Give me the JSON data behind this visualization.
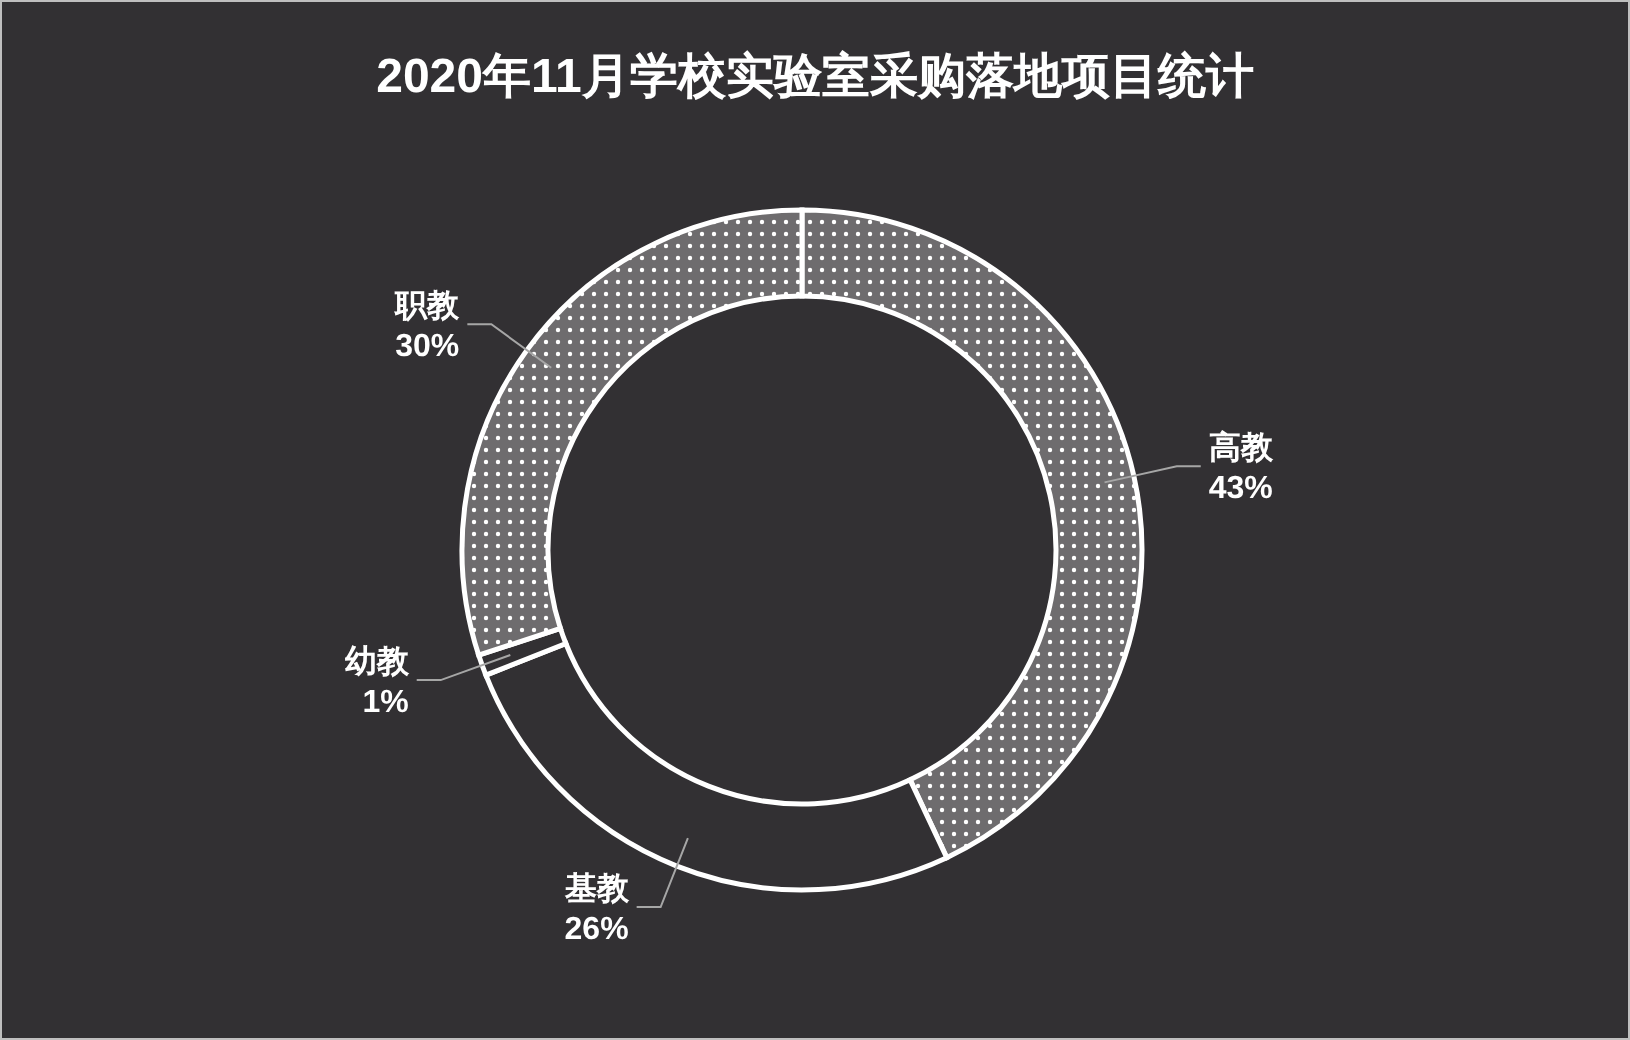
{
  "chart_data": {
    "type": "donut",
    "title": "2020年11月学校实验室采购落地项目统计",
    "categories": [
      "高教",
      "基教",
      "幼教",
      "职教"
    ],
    "values": [
      43,
      26,
      1,
      30
    ],
    "colors": [
      "#6e6c6e",
      "#323033",
      "#323033",
      "#6e6c6e"
    ],
    "value_labels": [
      "43%",
      "26%",
      "1%",
      "30%"
    ],
    "legend": false
  }
}
